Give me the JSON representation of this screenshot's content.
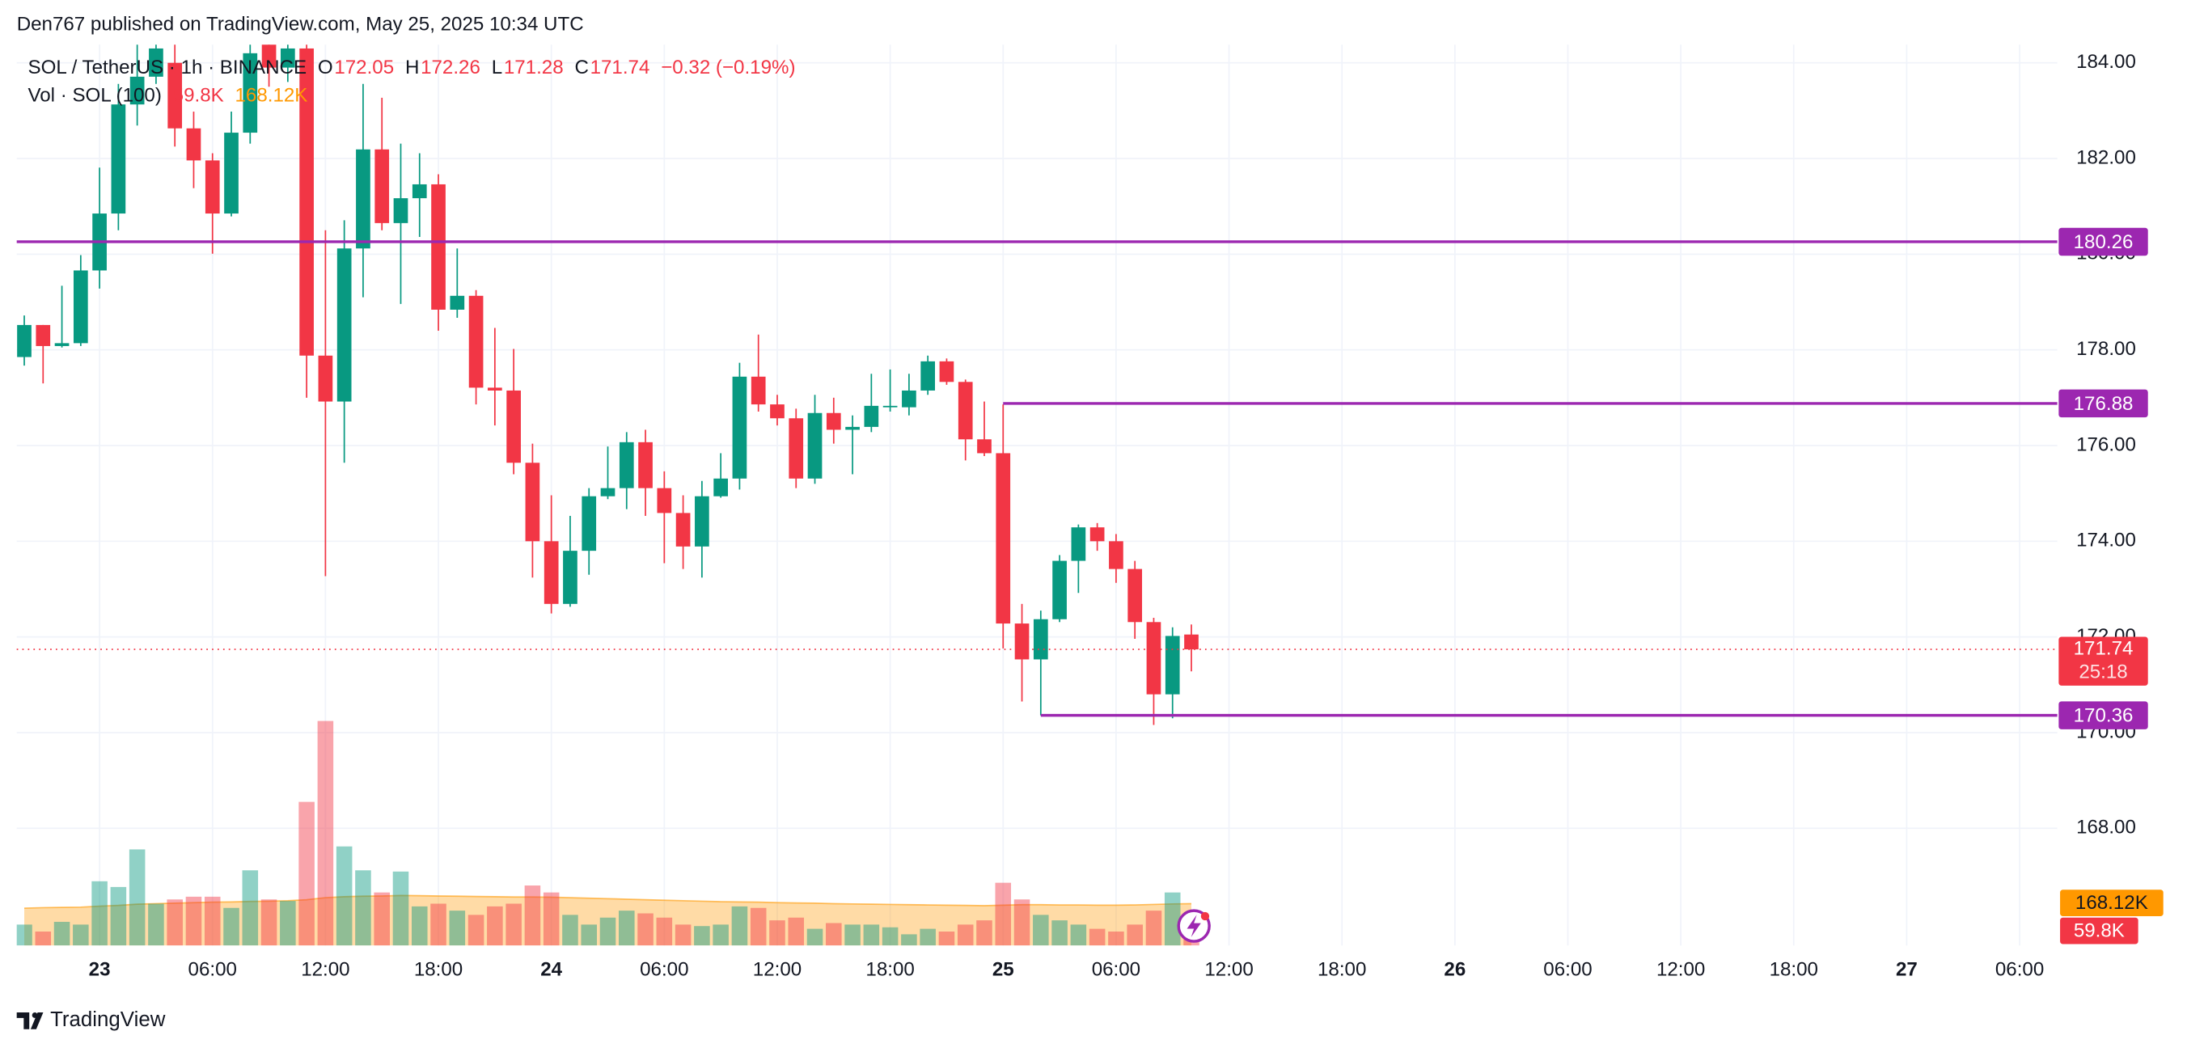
{
  "header": {
    "attribution": "Den767 published on TradingView.com, May 25, 2025 10:34 UTC"
  },
  "chart_data": {
    "type": "candlestick",
    "title": "SOL / TetherUS · 1h · BINANCE",
    "ohlc_letters": {
      "open": "O",
      "high": "H",
      "low": "L",
      "close": "C"
    },
    "change": "−0.32 (−0.19%)",
    "open": [
      177.85,
      178.52,
      178.08,
      178.14,
      179.66,
      180.85,
      183.13,
      183.71,
      184.0,
      182.63,
      181.96,
      180.85,
      182.54,
      184.4,
      183.9,
      184.3,
      177.88,
      176.92,
      180.12,
      182.19,
      180.65,
      181.17,
      181.46,
      178.84,
      179.13,
      177.21,
      177.15,
      175.64,
      174.0,
      172.69,
      173.8,
      174.94,
      175.11,
      176.07,
      175.11,
      174.59,
      173.89,
      174.94,
      175.31,
      177.44,
      176.86,
      176.57,
      175.31,
      176.68,
      176.33,
      176.39,
      176.8,
      176.8,
      177.15,
      177.76,
      177.33,
      176.13,
      175.84,
      172.28,
      171.53,
      172.37,
      173.59,
      174.29,
      174.0,
      173.42,
      172.31,
      170.8,
      172.05
    ],
    "high": [
      178.72,
      178.52,
      179.34,
      179.98,
      181.81,
      183.56,
      184.44,
      184.44,
      184.44,
      182.98,
      182.11,
      182.98,
      184.44,
      184.44,
      184.44,
      184.44,
      180.5,
      180.71,
      183.56,
      183.27,
      182.31,
      182.11,
      181.67,
      180.12,
      179.25,
      178.46,
      178.02,
      176.04,
      174.96,
      174.53,
      175.11,
      175.98,
      176.28,
      176.33,
      175.46,
      174.96,
      175.26,
      175.84,
      177.73,
      178.32,
      177.06,
      176.77,
      177.06,
      177.0,
      176.63,
      177.5,
      177.59,
      177.5,
      177.88,
      177.82,
      177.38,
      176.92,
      176.86,
      172.69,
      172.55,
      173.71,
      174.35,
      174.38,
      174.15,
      173.59,
      172.4,
      172.2,
      172.26
    ],
    "low": [
      177.67,
      177.3,
      178.05,
      178.08,
      179.28,
      180.5,
      182.69,
      183.56,
      182.25,
      181.38,
      180.01,
      180.79,
      182.31,
      183.5,
      183.6,
      177.0,
      173.27,
      175.64,
      179.1,
      180.5,
      178.96,
      180.36,
      178.4,
      178.67,
      176.86,
      176.42,
      175.4,
      173.24,
      172.49,
      172.63,
      173.3,
      174.88,
      174.67,
      174.53,
      173.54,
      173.42,
      173.24,
      174.91,
      175.08,
      176.71,
      176.42,
      175.11,
      175.2,
      176.04,
      175.4,
      176.28,
      176.71,
      176.63,
      177.06,
      177.27,
      175.69,
      175.78,
      171.76,
      170.65,
      170.36,
      172.31,
      172.92,
      173.8,
      173.13,
      171.96,
      170.16,
      170.3,
      171.28
    ],
    "close": [
      178.52,
      178.08,
      178.14,
      179.66,
      180.85,
      183.13,
      183.71,
      184.3,
      182.63,
      181.96,
      180.85,
      182.54,
      184.2,
      183.9,
      184.3,
      177.88,
      176.92,
      180.12,
      182.19,
      180.65,
      181.17,
      181.46,
      178.84,
      179.13,
      177.21,
      177.15,
      175.64,
      174.0,
      172.69,
      173.8,
      174.94,
      175.11,
      176.07,
      175.11,
      174.59,
      173.89,
      174.94,
      175.31,
      177.44,
      176.86,
      176.57,
      175.31,
      176.68,
      176.33,
      176.39,
      176.83,
      176.83,
      177.15,
      177.76,
      177.33,
      176.13,
      175.84,
      172.28,
      171.53,
      172.37,
      173.59,
      174.29,
      174.0,
      173.42,
      172.31,
      170.8,
      172.02,
      171.74
    ],
    "up_color": "#089981",
    "down_color": "#f23645",
    "countdown": "25:18",
    "ylim": [
      165.55,
      184.38
    ],
    "yticks": [
      {
        "value": 184,
        "label": "184.00"
      },
      {
        "value": 182,
        "label": "182.00"
      },
      {
        "value": 180,
        "label": "180.00"
      },
      {
        "value": 178,
        "label": "178.00"
      },
      {
        "value": 176,
        "label": "176.00"
      },
      {
        "value": 174,
        "label": "174.00"
      },
      {
        "value": 172,
        "label": "172.00"
      },
      {
        "value": 170,
        "label": "170.00"
      },
      {
        "value": 168,
        "label": "168.00"
      }
    ],
    "xlim": [
      -0.4,
      108
    ],
    "xticks": [
      {
        "value": 4,
        "label": "23"
      },
      {
        "value": 10,
        "label": "06:00"
      },
      {
        "value": 16,
        "label": "12:00"
      },
      {
        "value": 22,
        "label": "18:00"
      },
      {
        "value": 28,
        "label": "24"
      },
      {
        "value": 34,
        "label": "06:00"
      },
      {
        "value": 40,
        "label": "12:00"
      },
      {
        "value": 46,
        "label": "18:00"
      },
      {
        "value": 52,
        "label": "25"
      },
      {
        "value": 58,
        "label": "06:00"
      },
      {
        "value": 64,
        "label": "12:00"
      },
      {
        "value": 70,
        "label": "18:00"
      },
      {
        "value": 76,
        "label": "26"
      },
      {
        "value": 82,
        "label": "06:00"
      },
      {
        "value": 88,
        "label": "12:00"
      },
      {
        "value": 94,
        "label": "18:00"
      },
      {
        "value": 100,
        "label": "27"
      },
      {
        "value": 106,
        "label": "06:00"
      }
    ],
    "grid": true,
    "levels": [
      {
        "value": 180.26,
        "x_from": -0.4
      },
      {
        "value": 176.88,
        "x_from": 52
      },
      {
        "value": 170.36,
        "x_from": 54
      }
    ],
    "level_color": "#9c27b0",
    "volume": {
      "title": "Vol · SOL (100)",
      "values": [
        84,
        56,
        95,
        84,
        258,
        235,
        386,
        168,
        185,
        196,
        196,
        151,
        302,
        185,
        179,
        577,
        902,
        398,
        302,
        213,
        297,
        157,
        168,
        140,
        123,
        157,
        168,
        241,
        213,
        123,
        84,
        112,
        140,
        129,
        112,
        84,
        78,
        84,
        157,
        151,
        101,
        112,
        67,
        90,
        84,
        84,
        73,
        45,
        67,
        56,
        84,
        101,
        252,
        185,
        123,
        101,
        84,
        67,
        56,
        84,
        140,
        213,
        59.8
      ],
      "value_labels": [
        null,
        null,
        null,
        null,
        null,
        null,
        null,
        null,
        null,
        null,
        null,
        null,
        null,
        null,
        null,
        null,
        null,
        null,
        null,
        null,
        null,
        null,
        null,
        null,
        null,
        null,
        null,
        null,
        null,
        null,
        null,
        null,
        null,
        null,
        null,
        null,
        null,
        null,
        null,
        null,
        null,
        null,
        null,
        null,
        null,
        null,
        null,
        null,
        null,
        null,
        null,
        null,
        null,
        null,
        null,
        null,
        null,
        null,
        null,
        null,
        null,
        null,
        "59.8K"
      ],
      "ma_values": [
        150,
        152,
        153,
        154,
        158,
        161,
        166,
        168,
        170,
        172,
        174,
        175,
        177,
        178,
        180,
        184,
        192,
        196,
        198,
        199,
        201,
        200,
        199,
        198,
        197,
        196,
        195,
        195,
        194,
        192,
        190,
        188,
        186,
        184,
        182,
        180,
        178,
        176,
        175,
        174,
        172,
        171,
        170,
        168,
        167,
        166,
        165,
        164,
        163,
        162,
        161,
        160,
        162,
        164,
        164,
        163,
        163,
        162,
        162,
        163,
        165,
        167,
        168.12
      ],
      "ma_labels": [
        null,
        null,
        null,
        null,
        null,
        null,
        null,
        null,
        null,
        null,
        null,
        null,
        null,
        null,
        null,
        null,
        null,
        null,
        null,
        null,
        null,
        null,
        null,
        null,
        null,
        null,
        null,
        null,
        null,
        null,
        null,
        null,
        null,
        null,
        null,
        null,
        null,
        null,
        null,
        null,
        null,
        null,
        null,
        null,
        null,
        null,
        null,
        null,
        null,
        null,
        null,
        null,
        null,
        null,
        null,
        null,
        null,
        null,
        null,
        null,
        null,
        null,
        "168.12K"
      ],
      "ma_color": "#ff9800"
    }
  },
  "footer": {
    "brand": "TradingView"
  }
}
